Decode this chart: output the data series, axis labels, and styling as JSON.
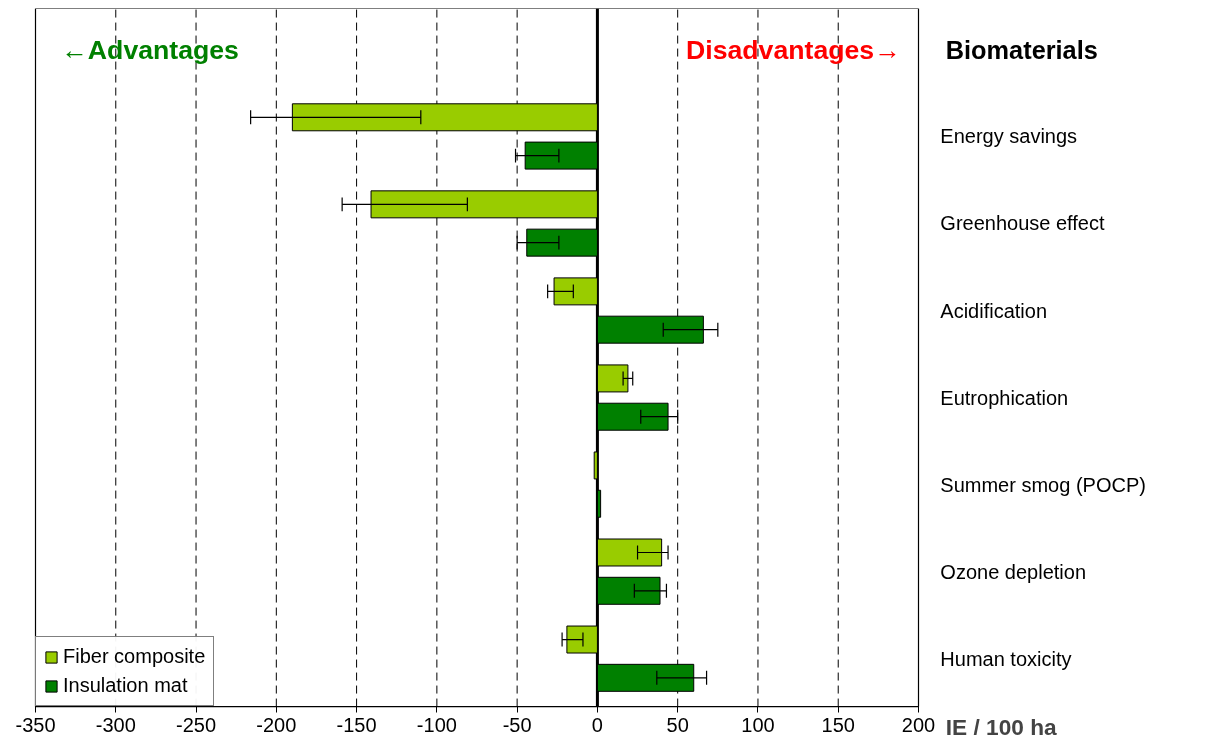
{
  "chart_data": {
    "type": "bar",
    "orientation": "horizontal",
    "ylabel": "Biomaterials",
    "xlabel": "IE / 100 ha",
    "annotations": [
      "←Advantages",
      "Disadvantages→"
    ],
    "categories": [
      "Energy savings",
      "Greenhouse effect",
      "Acidification",
      "Eutrophication",
      "Summer smog (POCP)",
      "Ozone depletion",
      "Human toxicity"
    ],
    "series": [
      {
        "name": "Fiber composite",
        "color": "#99cc00",
        "values": [
          -190,
          -141,
          -27,
          19,
          -2,
          40,
          -19
        ],
        "errors": [
          [
            -216,
            -110
          ],
          [
            -159,
            -81
          ],
          [
            -31,
            -15
          ],
          [
            16,
            22
          ],
          null,
          [
            25,
            44
          ],
          [
            -22,
            -9
          ]
        ]
      },
      {
        "name": "Insulation mat",
        "color": "#008000",
        "values": [
          -45,
          -44,
          66,
          44,
          2,
          39,
          60
        ],
        "errors": [
          [
            -51,
            -24
          ],
          [
            -50,
            -24
          ],
          [
            41,
            75
          ],
          [
            27,
            50
          ],
          null,
          [
            23,
            43
          ],
          [
            37,
            68
          ]
        ]
      }
    ],
    "xlim": [
      -350,
      200
    ],
    "xticks": [
      -350,
      -300,
      -250,
      -200,
      -150,
      -100,
      -50,
      0,
      50,
      100,
      150,
      200
    ],
    "grid": "x",
    "legend": "bottom left",
    "ref_lines": [
      {
        "axis": "x",
        "value": 0,
        "color": "#000000"
      }
    ]
  }
}
